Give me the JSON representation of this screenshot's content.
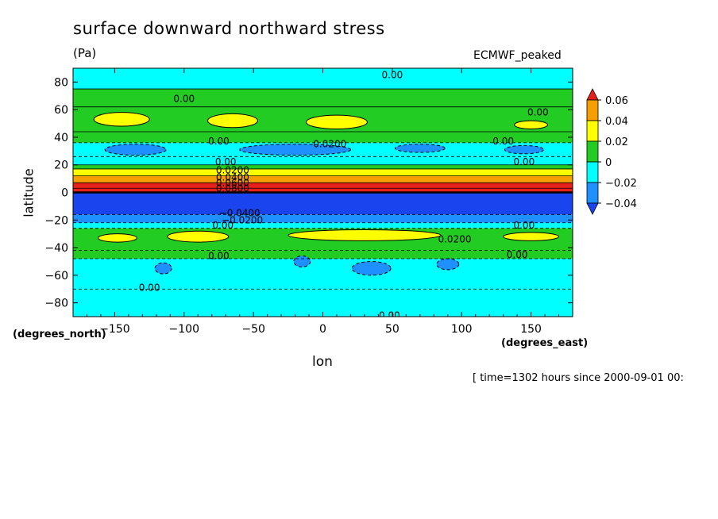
{
  "chart_data": {
    "type": "contour",
    "title": "surface downward northward stress",
    "units": "(Pa)",
    "model": "ECMWF_peaked",
    "xlabel": "lon",
    "ylabel": "latitude",
    "x_units": "(degrees_east)",
    "y_units": "(degrees_north)",
    "time_info": "[ time=1302 hours since 2000-09-01 00:",
    "xlim": [
      -180,
      180
    ],
    "ylim": [
      -90,
      90
    ],
    "x_ticks": [
      -150,
      -100,
      -50,
      0,
      50,
      100,
      150
    ],
    "y_ticks": [
      80,
      60,
      40,
      20,
      0,
      -20,
      -40,
      -60,
      -80
    ],
    "x_tick_labels": [
      "−150",
      "−100",
      "−50",
      "0",
      "50",
      "100",
      "150"
    ],
    "y_tick_labels": [
      "80",
      "60",
      "40",
      "20",
      "0",
      "−20",
      "−40",
      "−60",
      "−80"
    ],
    "legend": {
      "placement": "right",
      "levels": [
        0.06,
        0.04,
        0.02,
        0,
        -0.02,
        -0.04
      ],
      "labels": [
        "0.06",
        "0.04",
        "0.02",
        "0",
        "−0.02",
        "−0.04"
      ],
      "colors": [
        "#e8201c",
        "#f5a000",
        "#ffff00",
        "#22cc22",
        "#00ffff",
        "#1e90ff",
        "#1a44ee"
      ]
    },
    "zonal_bands": [
      {
        "lat": [
          75,
          90
        ],
        "class": "neg_small"
      },
      {
        "lat": [
          62,
          75
        ],
        "class": "pos_small"
      },
      {
        "lat": [
          44,
          62
        ],
        "class": "pos_small"
      },
      {
        "lat": [
          36,
          44
        ],
        "class": "pos_small"
      },
      {
        "lat": [
          26,
          36
        ],
        "class": "neg_small"
      },
      {
        "lat": [
          20,
          26
        ],
        "class": "neg_small"
      },
      {
        "lat": [
          17,
          20
        ],
        "class": "pos_small"
      },
      {
        "lat": [
          12,
          17
        ],
        "class": "pos_mid"
      },
      {
        "lat": [
          7,
          12
        ],
        "class": "pos_large"
      },
      {
        "lat": [
          3,
          7
        ],
        "class": "pos_max"
      },
      {
        "lat": [
          0,
          3
        ],
        "class": "pos_max"
      },
      {
        "lat": [
          -16,
          0
        ],
        "class": "neg_max"
      },
      {
        "lat": [
          -22,
          -16
        ],
        "class": "neg_mid"
      },
      {
        "lat": [
          -26,
          -22
        ],
        "class": "neg_small"
      },
      {
        "lat": [
          -42,
          -26
        ],
        "class": "pos_small"
      },
      {
        "lat": [
          -48,
          -42
        ],
        "class": "pos_small"
      },
      {
        "lat": [
          -70,
          -48
        ],
        "class": "neg_small"
      },
      {
        "lat": [
          -90,
          -70
        ],
        "class": "neg_small"
      }
    ],
    "positive_patches": [
      {
        "lon": -145,
        "lat": 53,
        "rlon": 20,
        "rlat": 5,
        "level": 0.02
      },
      {
        "lon": -65,
        "lat": 52,
        "rlon": 18,
        "rlat": 5,
        "level": 0.02
      },
      {
        "lon": 10,
        "lat": 51,
        "rlon": 22,
        "rlat": 5,
        "level": 0.02
      },
      {
        "lon": 150,
        "lat": 49,
        "rlon": 12,
        "rlat": 3,
        "level": 0.02
      },
      {
        "lon": -90,
        "lat": -32,
        "rlon": 22,
        "rlat": 4,
        "level": 0.02
      },
      {
        "lon": 30,
        "lat": -31,
        "rlon": 55,
        "rlat": 4,
        "level": 0.02
      },
      {
        "lon": 150,
        "lat": -32,
        "rlon": 20,
        "rlat": 3,
        "level": 0.02
      },
      {
        "lon": -148,
        "lat": -33,
        "rlon": 14,
        "rlat": 3,
        "level": 0.02
      }
    ],
    "negative_patches": [
      {
        "lon": -135,
        "lat": 31,
        "rlon": 22,
        "rlat": 4,
        "level": -0.02
      },
      {
        "lon": -20,
        "lat": 31,
        "rlon": 40,
        "rlat": 4,
        "level": -0.02
      },
      {
        "lon": 70,
        "lat": 32,
        "rlon": 18,
        "rlat": 3,
        "level": -0.02
      },
      {
        "lon": 145,
        "lat": 31,
        "rlon": 14,
        "rlat": 3,
        "level": -0.02
      },
      {
        "lon": -115,
        "lat": -55,
        "rlon": 6,
        "rlat": 4,
        "level": -0.02
      },
      {
        "lon": -15,
        "lat": -50,
        "rlon": 6,
        "rlat": 4,
        "level": -0.02
      },
      {
        "lon": 35,
        "lat": -55,
        "rlon": 14,
        "rlat": 5,
        "level": -0.02
      },
      {
        "lon": 90,
        "lat": -52,
        "rlon": 8,
        "rlat": 4,
        "level": -0.02
      }
    ],
    "contour_labels": [
      {
        "lon": 50,
        "lat": 85,
        "text": "0.00"
      },
      {
        "lon": -100,
        "lat": 68,
        "text": "0.00"
      },
      {
        "lon": 155,
        "lat": 58,
        "text": "0.00"
      },
      {
        "lon": -75,
        "lat": 37,
        "text": "0.00"
      },
      {
        "lon": 5,
        "lat": 35,
        "text": "0.0200"
      },
      {
        "lon": 130,
        "lat": 37,
        "text": "0.00"
      },
      {
        "lon": 145,
        "lat": 22,
        "text": "0.00"
      },
      {
        "lon": -70,
        "lat": 22,
        "text": "0.00"
      },
      {
        "lon": -65,
        "lat": 16,
        "text": "0.0200"
      },
      {
        "lon": -65,
        "lat": 11,
        "text": "0.0400"
      },
      {
        "lon": -65,
        "lat": 7,
        "text": "0.0600"
      },
      {
        "lon": -65,
        "lat": 3,
        "text": "0.0800"
      },
      {
        "lon": -60,
        "lat": -15,
        "text": "−0.0400"
      },
      {
        "lon": -58,
        "lat": -20,
        "text": "−0.0200"
      },
      {
        "lon": -72,
        "lat": -24,
        "text": "0.00"
      },
      {
        "lon": 95,
        "lat": -34,
        "text": "0.0200"
      },
      {
        "lon": 145,
        "lat": -24,
        "text": "0.00"
      },
      {
        "lon": -75,
        "lat": -46,
        "text": "0.00"
      },
      {
        "lon": 140,
        "lat": -45,
        "text": "0.00"
      },
      {
        "lon": -125,
        "lat": -69,
        "text": "0.00"
      },
      {
        "lon": 48,
        "lat": -89,
        "text": "0.00"
      }
    ]
  }
}
